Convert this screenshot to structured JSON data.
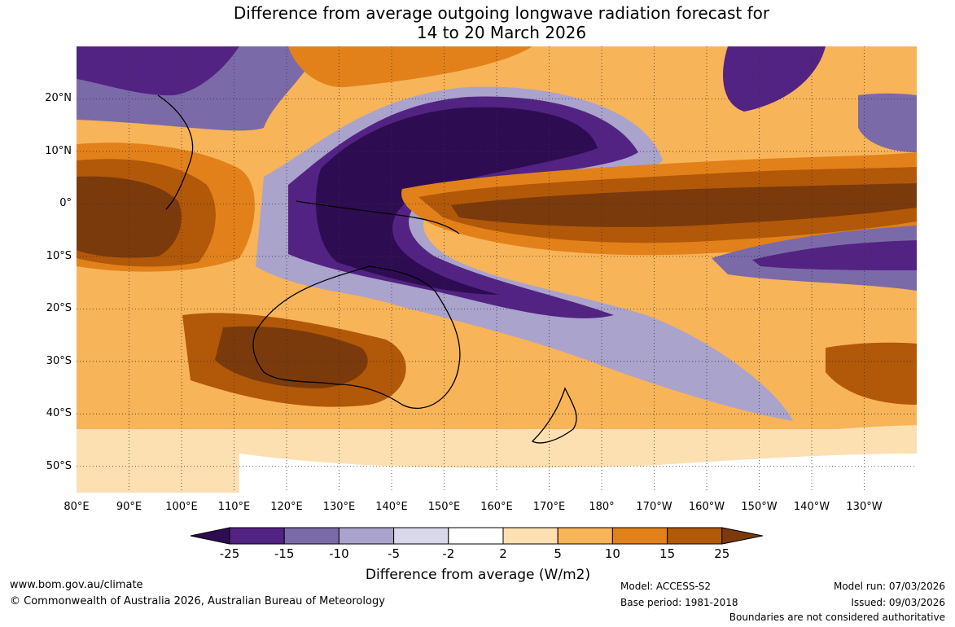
{
  "title": {
    "line1": "Difference from average outgoing longwave radiation forecast for",
    "line2": "14 to 20 March 2026"
  },
  "map": {
    "lat_labels": [
      "20°N",
      "10°N",
      "0°",
      "10°S",
      "20°S",
      "30°S",
      "40°S",
      "50°S"
    ],
    "lon_labels": [
      "80°E",
      "90°E",
      "100°E",
      "110°E",
      "120°E",
      "130°E",
      "140°E",
      "150°E",
      "160°E",
      "170°E",
      "180°",
      "170°W",
      "160°W",
      "150°W",
      "140°W",
      "130°W"
    ],
    "extent": {
      "lon_min": 80,
      "lon_max": 240,
      "lat_min": -55,
      "lat_max": 30
    }
  },
  "colorbar": {
    "tick_labels": [
      "-25",
      "-15",
      "-10",
      "-5",
      "-2",
      "2",
      "5",
      "10",
      "15",
      "25"
    ],
    "colors": [
      "#2e0c52",
      "#532383",
      "#7b6aa8",
      "#aaa3cc",
      "#d8d8ea",
      "#ffffff",
      "#fde0b1",
      "#f8b458",
      "#e2811a",
      "#b25809",
      "#7b3a0b"
    ],
    "title": "Difference from average (W/m2)"
  },
  "footer": {
    "website": "www.bom.gov.au/climate",
    "copyright": "© Commonwealth of Australia 2026, Australian Bureau of Meteorology",
    "model": "Model: ACCESS-S2",
    "base_period": "Base period: 1981-2018",
    "model_run": "Model run: 07/03/2026",
    "issued": "Issued: 09/03/2026",
    "disclaimer": "Boundaries are not considered authoritative"
  }
}
